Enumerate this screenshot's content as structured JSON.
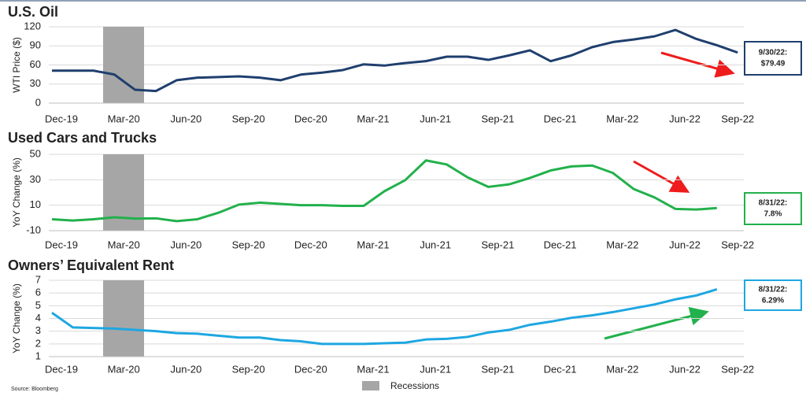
{
  "chart_data": [
    {
      "type": "line",
      "title": "U.S. Oil",
      "ylabel": "WTI Price ($)",
      "categories": [
        "Dec-19",
        null,
        null,
        "Mar-20",
        null,
        null,
        "Jun-20",
        null,
        null,
        "Sep-20",
        null,
        null,
        "Dec-20",
        null,
        null,
        "Mar-21",
        null,
        null,
        "Jun-21",
        null,
        null,
        "Sep-21",
        null,
        null,
        "Dec-21",
        null,
        null,
        "Mar-22",
        null,
        null,
        "Jun-22",
        null,
        null,
        "Sep-22"
      ],
      "series": [
        {
          "color": "#1f3f6e",
          "values": [
            51,
            51,
            51,
            45,
            21,
            19,
            36,
            40,
            41,
            42,
            40,
            36,
            45,
            48,
            52,
            61,
            59,
            63,
            66,
            73,
            73,
            68,
            75,
            83,
            66,
            75,
            88,
            96,
            100,
            105,
            115,
            101,
            91,
            79.49
          ]
        }
      ],
      "annotation": [
        "9/30/22:",
        "$79.49"
      ],
      "ylim": [
        0,
        120
      ],
      "yticks": [
        0,
        30,
        60,
        90,
        120
      ],
      "grid": true
    },
    {
      "type": "line",
      "title": "Used Cars and Trucks",
      "ylabel": "YoY Change (%)",
      "categories": [
        "Dec-19",
        null,
        null,
        "Mar-20",
        null,
        null,
        "Jun-20",
        null,
        null,
        "Sep-20",
        null,
        null,
        "Dec-20",
        null,
        null,
        "Mar-21",
        null,
        null,
        "Jun-21",
        null,
        null,
        "Sep-21",
        null,
        null,
        "Dec-21",
        null,
        null,
        "Mar-22",
        null,
        null,
        "Jun-22",
        null,
        null,
        "Sep-22"
      ],
      "series": [
        {
          "color": "#22b14c",
          "values": [
            -1,
            -2,
            -1,
            0.5,
            -0.5,
            -0.3,
            -2.5,
            -1,
            4,
            10.5,
            12,
            11,
            10,
            10,
            9.5,
            9.5,
            21,
            29.7,
            45.2,
            42,
            31.9,
            24.4,
            26.4,
            31.4,
            37.3,
            40.5,
            41.2,
            35.3,
            22.7,
            16.1,
            7.1,
            6.6,
            7.8,
            null
          ]
        }
      ],
      "annotation": [
        "8/31/22:",
        "7.8%"
      ],
      "ylim": [
        -10,
        50
      ],
      "yticks": [
        -10,
        10,
        30,
        50
      ],
      "grid": true
    },
    {
      "type": "line",
      "title": "Owners’ Equivalent Rent",
      "ylabel": "YoY Change (%)",
      "categories": [
        "Dec-19",
        null,
        null,
        "Mar-20",
        null,
        null,
        "Jun-20",
        null,
        null,
        "Sep-20",
        null,
        null,
        "Dec-20",
        null,
        null,
        "Mar-21",
        null,
        null,
        "Jun-21",
        null,
        null,
        "Sep-21",
        null,
        null,
        "Dec-21",
        null,
        null,
        "Mar-22",
        null,
        null,
        "Jun-22",
        null,
        null,
        "Sep-22"
      ],
      "series": [
        {
          "color": "#1ea7e1",
          "values": [
            4.45,
            3.3,
            3.25,
            3.2,
            3.1,
            3.0,
            2.85,
            2.8,
            2.65,
            2.5,
            2.5,
            2.3,
            2.2,
            2.0,
            2.0,
            2.0,
            2.05,
            2.1,
            2.35,
            2.4,
            2.55,
            2.9,
            3.1,
            3.5,
            3.75,
            4.05,
            4.25,
            4.5,
            4.8,
            5.1,
            5.5,
            5.8,
            6.29,
            null
          ]
        }
      ],
      "annotation": [
        "8/31/22:",
        "6.29%"
      ],
      "ylim": [
        1,
        7
      ],
      "yticks": [
        1,
        2,
        3,
        4,
        5,
        6,
        7
      ],
      "grid": true
    }
  ],
  "legend": "Recessions",
  "source": "Source: Bloomberg"
}
